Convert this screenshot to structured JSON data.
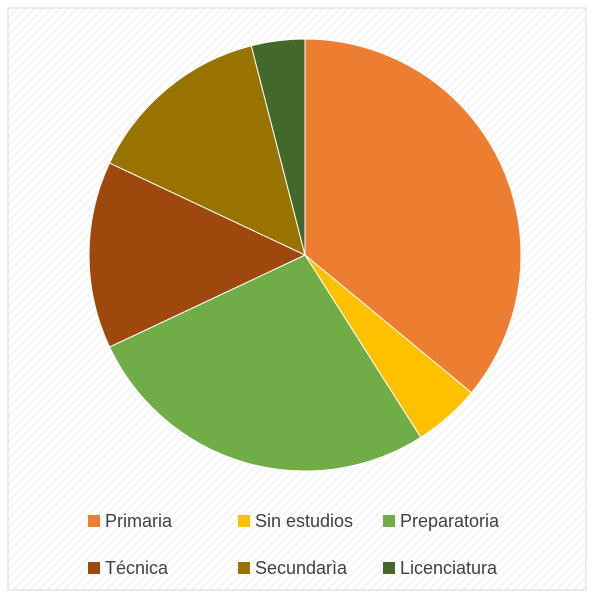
{
  "chart_data": {
    "type": "pie",
    "categories": [
      "Primaria",
      "Sin estudios",
      "Preparatoria",
      "Técnica",
      "Secundarìa",
      "Licenciatura"
    ],
    "values": [
      36,
      5,
      27,
      14,
      14,
      4
    ],
    "colors": [
      "#ed7d31",
      "#ffc000",
      "#70ad47",
      "#9e480e",
      "#997300",
      "#43682b"
    ],
    "legend": "bottom"
  }
}
